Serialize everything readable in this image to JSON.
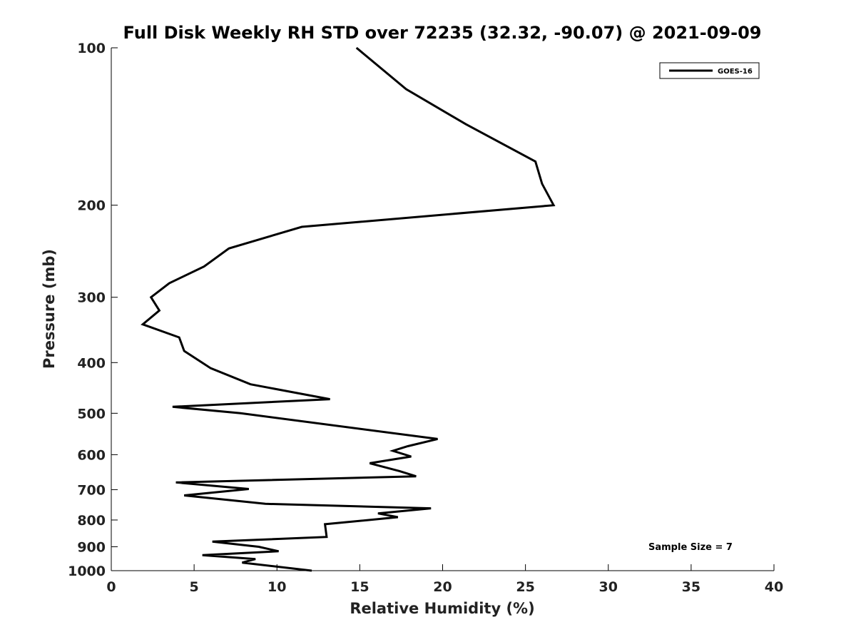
{
  "chart_data": {
    "type": "line",
    "title": "Full Disk Weekly RH STD over 72235 (32.32, -90.07) @ 2021-09-09",
    "xlabel": "Relative Humidity (%)",
    "ylabel": "Pressure (mb)",
    "xlim": [
      0,
      40
    ],
    "ylim": [
      1000,
      100
    ],
    "yscale": "log",
    "x_ticks": [
      0,
      5,
      10,
      15,
      20,
      25,
      30,
      35,
      40
    ],
    "y_ticks": [
      100,
      200,
      300,
      400,
      500,
      600,
      700,
      800,
      900,
      1000
    ],
    "legend": {
      "position": "top-right",
      "entries": [
        "GOES-16"
      ]
    },
    "annotation": "Sample Size = 7",
    "series": [
      {
        "name": "GOES-16",
        "color": "#000000",
        "points": [
          [
            14.8,
            100
          ],
          [
            17.8,
            120
          ],
          [
            21.4,
            140
          ],
          [
            25.6,
            165
          ],
          [
            26.0,
            182
          ],
          [
            26.7,
            200
          ],
          [
            11.5,
            220
          ],
          [
            7.1,
            242
          ],
          [
            5.6,
            262
          ],
          [
            3.5,
            282
          ],
          [
            2.4,
            300
          ],
          [
            2.9,
            318
          ],
          [
            1.9,
            338
          ],
          [
            4.1,
            358
          ],
          [
            4.4,
            380
          ],
          [
            6.0,
            410
          ],
          [
            8.4,
            440
          ],
          [
            13.2,
            470
          ],
          [
            3.7,
            486
          ],
          [
            7.8,
            500
          ],
          [
            19.7,
            560
          ],
          [
            17.9,
            578
          ],
          [
            17.0,
            590
          ],
          [
            18.1,
            605
          ],
          [
            15.6,
            623
          ],
          [
            17.4,
            645
          ],
          [
            18.4,
            660
          ],
          [
            3.9,
            678
          ],
          [
            8.3,
            698
          ],
          [
            4.4,
            718
          ],
          [
            9.3,
            745
          ],
          [
            19.3,
            760
          ],
          [
            16.1,
            777
          ],
          [
            17.3,
            790
          ],
          [
            12.9,
            815
          ],
          [
            13.0,
            862
          ],
          [
            6.1,
            880
          ],
          [
            8.9,
            900
          ],
          [
            10.1,
            918
          ],
          [
            5.5,
            934
          ],
          [
            8.7,
            950
          ],
          [
            7.9,
            965
          ],
          [
            12.1,
            1000
          ]
        ]
      }
    ]
  }
}
